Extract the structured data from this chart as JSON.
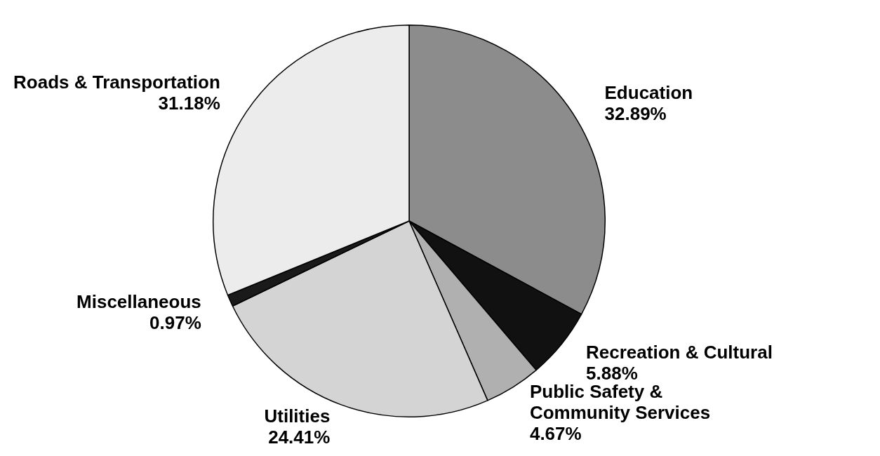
{
  "chart_data": {
    "type": "pie",
    "categories": [
      "Education",
      "Recreation & Cultural",
      "Public Safety & Community Services",
      "Utilities",
      "Miscellaneous",
      "Roads & Transportation"
    ],
    "values": [
      32.89,
      5.88,
      4.67,
      24.41,
      0.97,
      31.18
    ],
    "value_labels": [
      "32.89%",
      "5.88%",
      "4.67%",
      "24.41%",
      "0.97%",
      "31.18%"
    ],
    "colors": [
      "#8c8c8c",
      "#111111",
      "#b0b0b0",
      "#d4d4d4",
      "#1a1a1a",
      "#ececec"
    ]
  }
}
